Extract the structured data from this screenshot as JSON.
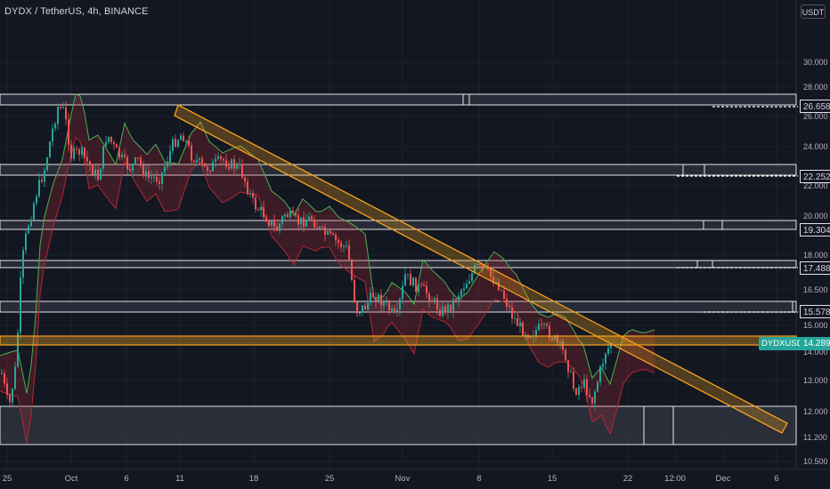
{
  "header": {
    "symbol_title": "DYDX / TetherUS, 4h, BINANCE",
    "currency": "USDT"
  },
  "price_axis": {
    "ticks": [
      "30.000",
      "28.000",
      "26.000",
      "24.000",
      "22.000",
      "20.000",
      "18.000",
      "16.500",
      "15.000",
      "14.000",
      "13.000",
      "12.000",
      "11.200",
      "10.500"
    ]
  },
  "time_axis": {
    "ticks": [
      "25",
      "Oct",
      "6",
      "11",
      "18",
      "25",
      "Nov",
      "8",
      "15",
      "22",
      "12:00",
      "Dec",
      "6"
    ]
  },
  "levels": {
    "labels": [
      "26.658",
      "22.252",
      "19.304",
      "17.488",
      "15.578"
    ],
    "values": [
      26.658,
      22.252,
      19.304,
      17.488,
      15.578
    ]
  },
  "last_price": {
    "ticker": "DYDXUSDT",
    "value": "14.289"
  },
  "colors": {
    "background": "#131722",
    "up": "#26a69a",
    "down": "#ef5350",
    "trendline": "#f6a21e",
    "level_line": "#ffffff",
    "cloud_green": "#4caf50",
    "cloud_red": "#b22833"
  }
}
